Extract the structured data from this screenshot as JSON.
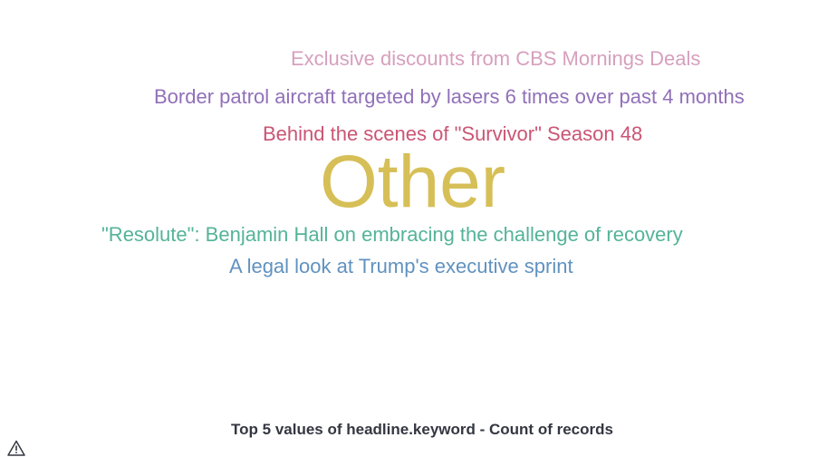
{
  "chart_data": {
    "type": "tagcloud",
    "title": "Top 5 values of headline.keyword - Count of records",
    "words": [
      {
        "text": "Exclusive discounts from CBS Mornings Deals",
        "weight": 1,
        "color": "#D6A0BD"
      },
      {
        "text": "Border patrol aircraft targeted by lasers 6 times over past 4 months",
        "weight": 1,
        "color": "#9170B8"
      },
      {
        "text": "Behind the scenes of \"Survivor\" Season 48",
        "weight": 1,
        "color": "#CA5574"
      },
      {
        "text": "Other",
        "weight": 4,
        "color": "#D6BF57"
      },
      {
        "text": "\"Resolute\": Benjamin Hall on embracing the challenge of recovery",
        "weight": 1,
        "color": "#54B399"
      },
      {
        "text": "A legal look at Trump's executive sprint",
        "weight": 1,
        "color": "#6092C0"
      }
    ]
  },
  "icons": {
    "warning": "warning-icon"
  }
}
